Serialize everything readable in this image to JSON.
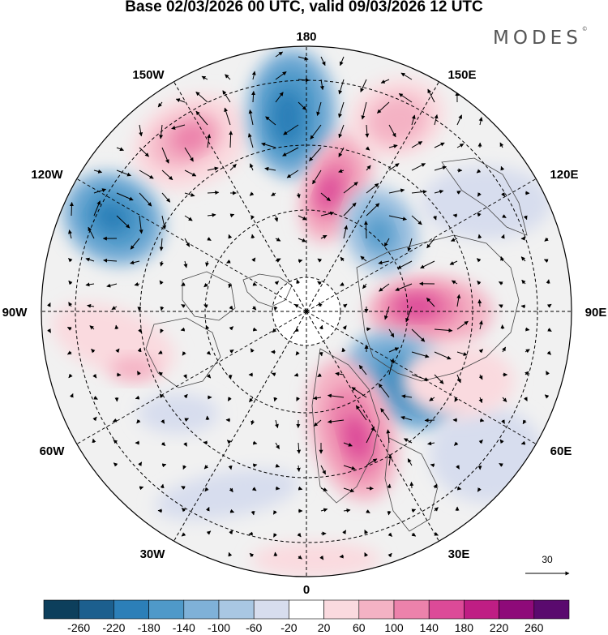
{
  "title": "Base 02/03/2026 00 UTC, valid 09/03/2026 12 UTC",
  "logo": "MODES",
  "logo_mark": "©",
  "longitude_labels": {
    "lon_0": "0",
    "lon_30e": "30E",
    "lon_60e": "60E",
    "lon_90e": "90E",
    "lon_120e": "120E",
    "lon_150e": "150E",
    "lon_180": "180",
    "lon_150w": "150W",
    "lon_120w": "120W",
    "lon_90w": "90W",
    "lon_60w": "60W",
    "lon_30w": "30W"
  },
  "reference_vector": {
    "label": "30"
  },
  "colorbar": {
    "labels": [
      "-260",
      "-220",
      "-180",
      "-140",
      "-100",
      "-60",
      "-20",
      "20",
      "60",
      "100",
      "140",
      "180",
      "220",
      "260"
    ],
    "colors": [
      "#0d3f5c",
      "#1c5f8e",
      "#2c7fb8",
      "#4f99c9",
      "#7fb1d8",
      "#a9c7e3",
      "#d7ddee",
      "#ffffff",
      "#fadadf",
      "#f4b2c4",
      "#ec82ab",
      "#dc4a98",
      "#bf1e84",
      "#8e0a79",
      "#5a0a6e"
    ]
  }
}
